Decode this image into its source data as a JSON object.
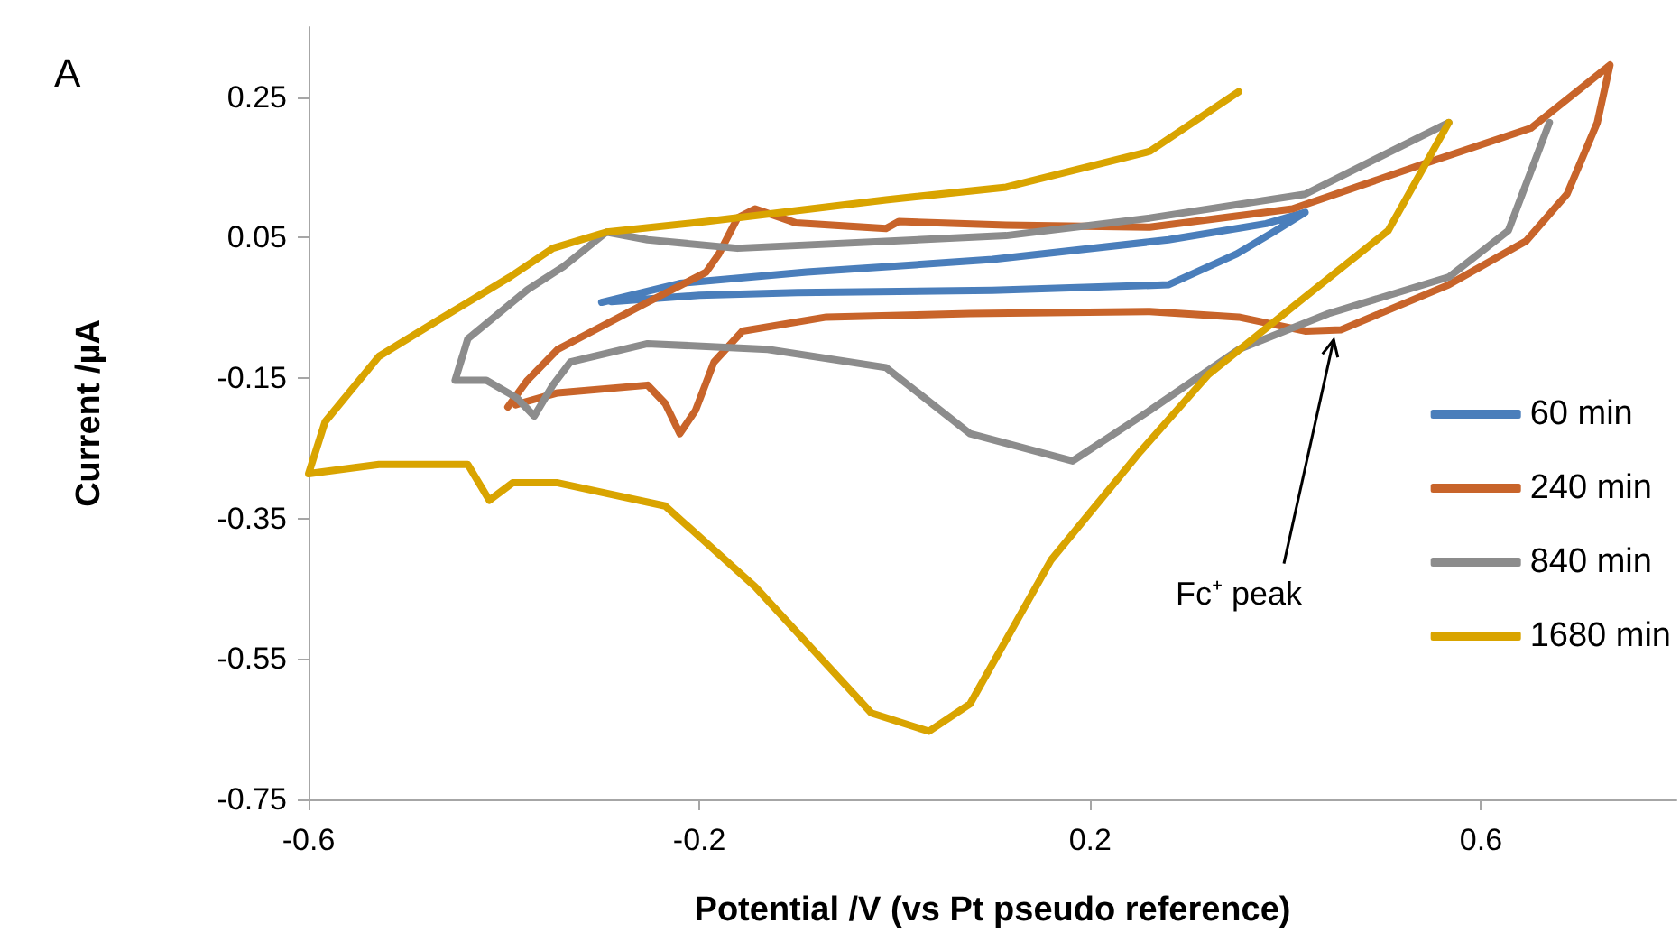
{
  "chart_data": {
    "type": "line",
    "title": "A",
    "xlabel": "Potential /V (vs Pt pseudo reference)",
    "ylabel": "Current /µA",
    "xlim": [
      -0.6,
      0.8
    ],
    "xticks": [
      -0.6,
      -0.2,
      0.2,
      0.6
    ],
    "ylim": [
      -0.75,
      0.35
    ],
    "yticks": [
      0.25,
      0.05,
      -0.15,
      -0.35,
      -0.55,
      -0.75
    ],
    "grid": false,
    "legend": "right",
    "marker": "none",
    "line_style": "solid",
    "annotations": [
      {
        "text": "Fc⁺ peak",
        "x": 0.45,
        "y": -0.08
      }
    ],
    "series": [
      {
        "name": "60 min",
        "color": "#4a7ebb",
        "x": [
          -0.3,
          -0.22,
          -0.09,
          0.1,
          0.28,
          0.38,
          0.42,
          0.39,
          0.35,
          0.28,
          0.1,
          -0.1,
          -0.2,
          -0.29
        ],
        "values": [
          -0.042,
          -0.015,
          0.001,
          0.019,
          0.047,
          0.07,
          0.086,
          0.06,
          0.027,
          -0.017,
          -0.025,
          -0.028,
          -0.032,
          -0.041
        ]
      },
      {
        "name": "240 min",
        "color": "#c8642a",
        "x": [
          -0.396,
          -0.376,
          -0.345,
          -0.253,
          -0.193,
          -0.18,
          -0.161,
          -0.143,
          -0.101,
          -0.009,
          0.004,
          0.114,
          0.261,
          0.407,
          0.541,
          0.651,
          0.732,
          0.719,
          0.688,
          0.646,
          0.567,
          0.457,
          0.42,
          0.352,
          0.261,
          0.077,
          -0.07,
          -0.156,
          -0.185,
          -0.204,
          -0.22,
          -0.235,
          -0.253,
          -0.345,
          -0.376,
          -0.388
        ],
        "values": [
          -0.191,
          -0.153,
          -0.109,
          -0.042,
          0.001,
          0.027,
          0.078,
          0.091,
          0.071,
          0.063,
          0.073,
          0.068,
          0.065,
          0.091,
          0.155,
          0.206,
          0.296,
          0.214,
          0.112,
          0.045,
          -0.017,
          -0.081,
          -0.083,
          -0.063,
          -0.055,
          -0.058,
          -0.063,
          -0.083,
          -0.127,
          -0.196,
          -0.229,
          -0.186,
          -0.16,
          -0.171,
          -0.183,
          -0.188
        ]
      },
      {
        "name": "840 min",
        "color": "#8c8c8c",
        "x": [
          -0.45,
          -0.437,
          -0.376,
          -0.339,
          -0.295,
          -0.253,
          -0.161,
          0.114,
          0.261,
          0.42,
          0.567,
          null,
          0.67,
          0.628,
          0.567,
          0.444,
          0.352,
          0.261,
          0.182,
          0.077,
          -0.009,
          -0.13,
          -0.253,
          -0.332,
          -0.35,
          -0.369,
          -0.387,
          -0.418,
          -0.45
        ],
        "values": [
          -0.153,
          -0.094,
          -0.024,
          0.009,
          0.058,
          0.047,
          0.035,
          0.053,
          0.078,
          0.112,
          0.214,
          null,
          0.214,
          0.06,
          -0.006,
          -0.058,
          -0.109,
          -0.196,
          -0.268,
          -0.229,
          -0.135,
          -0.109,
          -0.101,
          -0.127,
          -0.16,
          -0.204,
          -0.178,
          -0.153,
          -0.153
        ]
      },
      {
        "name": "1680 min",
        "color": "#d9a400",
        "x": [
          0.567,
          0.505,
          0.413,
          0.321,
          0.251,
          0.16,
          0.077,
          0.035,
          -0.024,
          -0.143,
          -0.235,
          -0.345,
          -0.391,
          -0.415,
          -0.437,
          -0.528,
          -0.6,
          -0.583,
          -0.528,
          -0.468,
          -0.394,
          -0.35,
          -0.295,
          -0.193,
          -0.009,
          0.114,
          0.261,
          0.352
        ],
        "values": [
          0.214,
          0.06,
          -0.042,
          -0.145,
          -0.255,
          -0.409,
          -0.614,
          -0.653,
          -0.627,
          -0.447,
          -0.332,
          -0.299,
          -0.299,
          -0.324,
          -0.273,
          -0.273,
          -0.286,
          -0.212,
          -0.119,
          -0.068,
          -0.006,
          0.035,
          0.058,
          0.073,
          0.104,
          0.122,
          0.173,
          0.258
        ]
      }
    ]
  }
}
